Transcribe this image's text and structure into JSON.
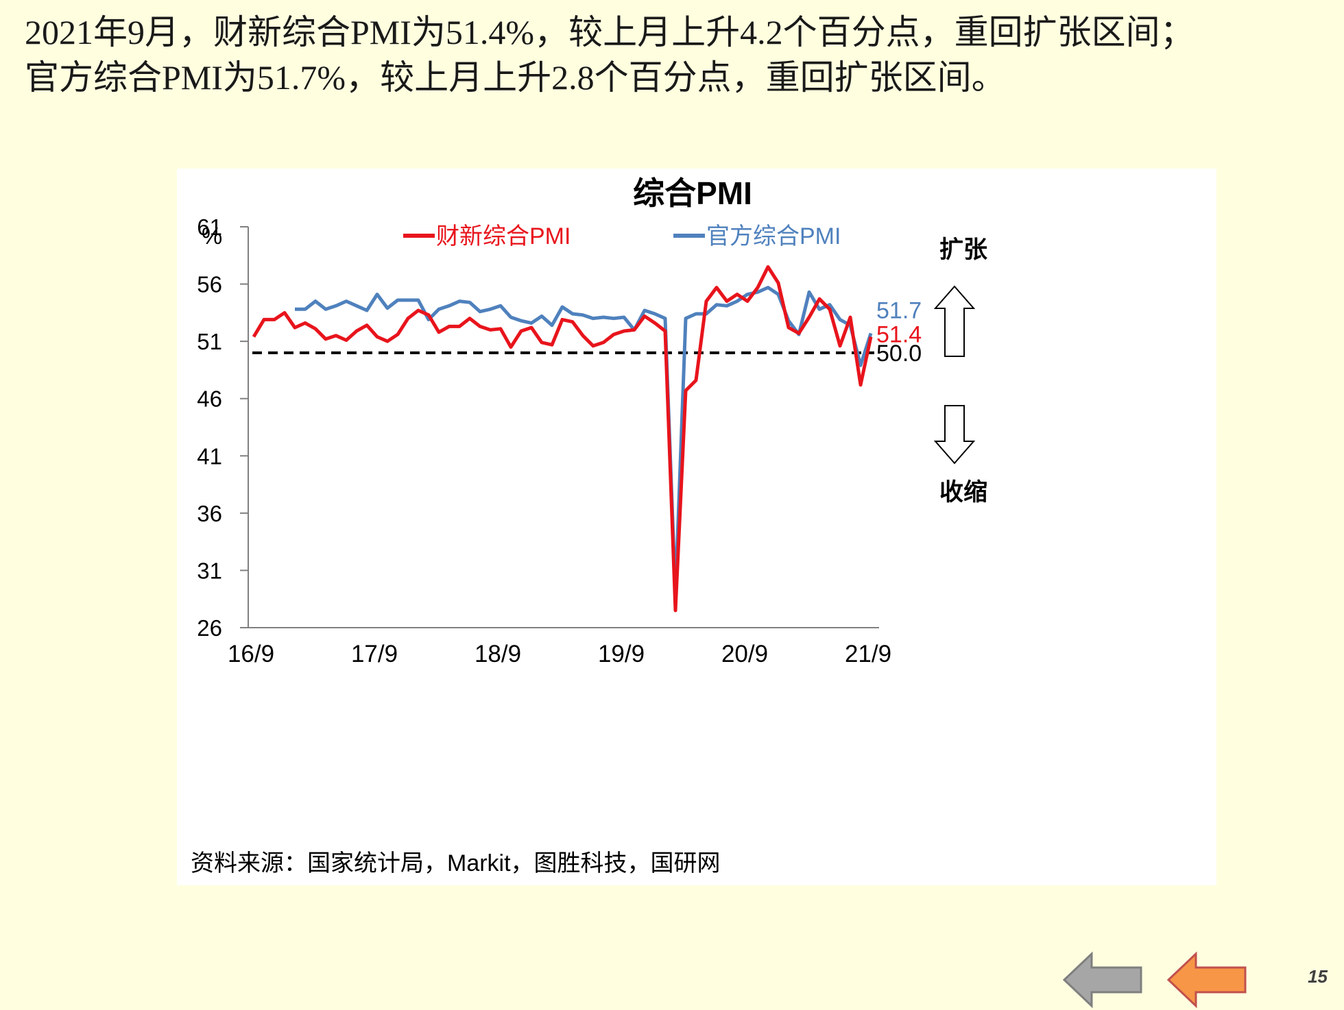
{
  "headline": {
    "line1": "2021年9月，财新综合PMI为51.4%，较上月上升4.2个百分点，重回扩张区间；",
    "line2": "官方综合PMI为51.7%，较上月上升2.8个百分点，重回扩张区间。"
  },
  "chart_data": {
    "type": "line",
    "title": "综合PMI",
    "ylabel": "%",
    "ylim": [
      26,
      61
    ],
    "yticks": [
      "61",
      "56",
      "51",
      "46",
      "41",
      "36",
      "31",
      "26"
    ],
    "xticks": [
      "16/9",
      "17/9",
      "18/9",
      "19/9",
      "20/9",
      "21/9"
    ],
    "x": [
      "16/9",
      "16/10",
      "16/11",
      "16/12",
      "17/1",
      "17/2",
      "17/3",
      "17/4",
      "17/5",
      "17/6",
      "17/7",
      "17/8",
      "17/9",
      "17/10",
      "17/11",
      "17/12",
      "18/1",
      "18/2",
      "18/3",
      "18/4",
      "18/5",
      "18/6",
      "18/7",
      "18/8",
      "18/9",
      "18/10",
      "18/11",
      "18/12",
      "19/1",
      "19/2",
      "19/3",
      "19/4",
      "19/5",
      "19/6",
      "19/7",
      "19/8",
      "19/9",
      "19/10",
      "19/11",
      "19/12",
      "20/1",
      "20/2",
      "20/3",
      "20/4",
      "20/5",
      "20/6",
      "20/7",
      "20/8",
      "20/9",
      "20/10",
      "20/11",
      "20/12",
      "21/1",
      "21/2",
      "21/3",
      "21/4",
      "21/5",
      "21/6",
      "21/7",
      "21/8",
      "21/9"
    ],
    "series": [
      {
        "name": "财新综合PMI",
        "color": "#e8141c",
        "values": [
          51.4,
          52.9,
          52.9,
          53.5,
          52.2,
          52.6,
          52.1,
          51.2,
          51.5,
          51.1,
          51.9,
          52.4,
          51.4,
          51.0,
          51.6,
          53.0,
          53.7,
          53.3,
          51.8,
          52.3,
          52.3,
          53.0,
          52.3,
          52.0,
          52.1,
          50.5,
          51.9,
          52.2,
          50.9,
          50.7,
          52.9,
          52.7,
          51.5,
          50.6,
          50.9,
          51.6,
          51.9,
          52.0,
          53.2,
          52.6,
          51.9,
          27.5,
          46.7,
          47.6,
          54.5,
          55.7,
          54.5,
          55.1,
          54.5,
          55.7,
          57.5,
          56.1,
          52.2,
          51.7,
          53.1,
          54.7,
          53.8,
          50.6,
          53.1,
          47.2,
          51.4
        ]
      },
      {
        "name": "官方综合PMI",
        "color": "#4f81bd",
        "values": [
          null,
          null,
          null,
          null,
          53.8,
          53.8,
          54.5,
          53.8,
          54.1,
          54.5,
          54.1,
          53.7,
          55.1,
          53.9,
          54.6,
          54.6,
          54.6,
          52.9,
          53.8,
          54.1,
          54.5,
          54.4,
          53.6,
          53.8,
          54.1,
          53.1,
          52.8,
          52.6,
          53.2,
          52.4,
          54.0,
          53.4,
          53.3,
          53.0,
          53.1,
          53.0,
          53.1,
          52.0,
          53.7,
          53.4,
          53.0,
          28.9,
          53.0,
          53.4,
          53.4,
          54.2,
          54.1,
          54.5,
          55.1,
          55.3,
          55.7,
          55.1,
          52.8,
          51.6,
          55.3,
          53.8,
          54.2,
          52.9,
          52.4,
          48.9,
          51.7
        ]
      }
    ],
    "reference_line": {
      "value": 50.0,
      "label": "50.0",
      "style": "dashed",
      "color": "#000000"
    },
    "end_labels": [
      {
        "series": "官方综合PMI",
        "text": "51.7",
        "color": "#4f81bd"
      },
      {
        "series": "财新综合PMI",
        "text": "51.4",
        "color": "#e8141c"
      }
    ],
    "annotations": {
      "expand": "扩张",
      "contract": "收缩"
    },
    "legend_position": "top",
    "grid": false,
    "source": "资料来源：国家统计局，Markit，图胜科技，国研网"
  },
  "nav": {
    "back_color": "#a6a6a6",
    "forward_color": "#f79646",
    "back_icon": "left-arrow-icon",
    "forward_icon": "left-arrow-icon"
  },
  "page_number": "15"
}
